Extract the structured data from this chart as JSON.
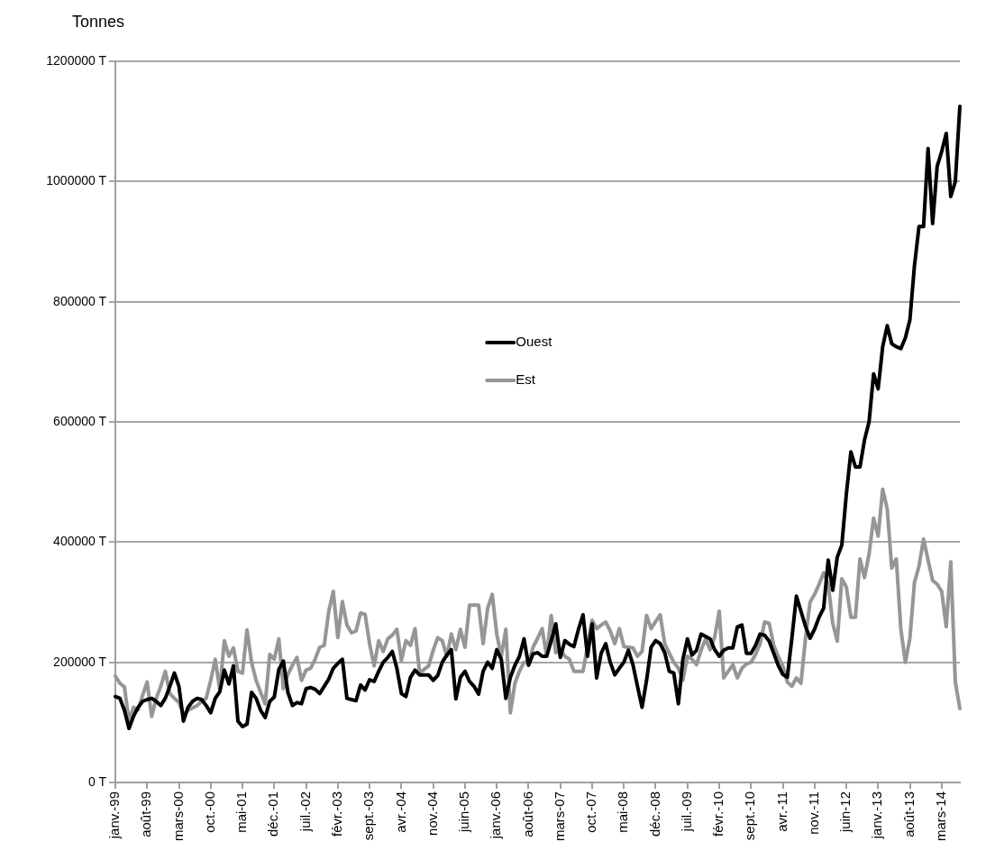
{
  "chart_data": {
    "type": "line",
    "ylabel": "Tonnes",
    "categories": [
      "janv.-99",
      null,
      null,
      null,
      null,
      null,
      null,
      "août-99",
      null,
      null,
      null,
      null,
      null,
      null,
      "mars-00",
      null,
      null,
      null,
      null,
      null,
      null,
      "oct.-00",
      null,
      null,
      null,
      null,
      null,
      null,
      "mai-01",
      null,
      null,
      null,
      null,
      null,
      null,
      "déc.-01",
      null,
      null,
      null,
      null,
      null,
      null,
      "juil.-02",
      null,
      null,
      null,
      null,
      null,
      null,
      "févr.-03",
      null,
      null,
      null,
      null,
      null,
      null,
      "sept.-03",
      null,
      null,
      null,
      null,
      null,
      null,
      "avr.-04",
      null,
      null,
      null,
      null,
      null,
      null,
      "nov.-04",
      null,
      null,
      null,
      null,
      null,
      null,
      "juin-05",
      null,
      null,
      null,
      null,
      null,
      null,
      "janv.-06",
      null,
      null,
      null,
      null,
      null,
      null,
      "août-06",
      null,
      null,
      null,
      null,
      null,
      null,
      "mars-07",
      null,
      null,
      null,
      null,
      null,
      null,
      "oct.-07",
      null,
      null,
      null,
      null,
      null,
      null,
      "mai-08",
      null,
      null,
      null,
      null,
      null,
      null,
      "déc.-08",
      null,
      null,
      null,
      null,
      null,
      null,
      "juil.-09",
      null,
      null,
      null,
      null,
      null,
      null,
      "févr.-10",
      null,
      null,
      null,
      null,
      null,
      null,
      "sept.-10",
      null,
      null,
      null,
      null,
      null,
      null,
      "avr.-11",
      null,
      null,
      null,
      null,
      null,
      null,
      "nov.-11",
      null,
      null,
      null,
      null,
      null,
      null,
      "juin-12",
      null,
      null,
      null,
      null,
      null,
      null,
      "janv.-13",
      null,
      null,
      null,
      null,
      null,
      null,
      "août-13",
      null,
      null,
      null,
      null,
      null,
      null,
      "mars-14",
      null,
      null,
      null,
      null
    ],
    "series": [
      {
        "name": "Ouest",
        "color": "#000000",
        "values": [
          143000,
          140000,
          120000,
          90000,
          110000,
          125000,
          135000,
          138000,
          140000,
          135000,
          128000,
          140000,
          160000,
          182000,
          160000,
          102000,
          125000,
          135000,
          140000,
          138000,
          128000,
          116000,
          140000,
          151000,
          187000,
          164000,
          194000,
          102000,
          93000,
          97000,
          150000,
          140000,
          120000,
          108000,
          135000,
          142000,
          188000,
          202000,
          150000,
          128000,
          133000,
          131000,
          156000,
          158000,
          155000,
          148000,
          160000,
          172000,
          190000,
          198000,
          205000,
          140000,
          138000,
          136000,
          162000,
          154000,
          171000,
          168000,
          185000,
          200000,
          208000,
          218000,
          190000,
          148000,
          143000,
          175000,
          187000,
          179000,
          179000,
          179000,
          170000,
          178000,
          200000,
          212000,
          221000,
          139000,
          175000,
          185000,
          168000,
          160000,
          147000,
          185000,
          200000,
          190000,
          221000,
          205000,
          140000,
          175000,
          195000,
          210000,
          239000,
          195000,
          214000,
          216000,
          210000,
          210000,
          236000,
          264000,
          208000,
          236000,
          230000,
          226000,
          255000,
          279000,
          210000,
          264000,
          174000,
          215000,
          231000,
          200000,
          179000,
          190000,
          200000,
          220000,
          196000,
          160000,
          125000,
          170000,
          225000,
          236000,
          231000,
          216000,
          185000,
          182000,
          131000,
          205000,
          239000,
          212000,
          220000,
          247000,
          243000,
          239000,
          221000,
          210000,
          220000,
          224000,
          224000,
          259000,
          262000,
          215000,
          215000,
          228000,
          247000,
          245000,
          235000,
          215000,
          195000,
          180000,
          175000,
          240000,
          310000,
          285000,
          260000,
          240000,
          255000,
          275000,
          290000,
          370000,
          320000,
          375000,
          395000,
          480000,
          550000,
          525000,
          525000,
          570000,
          600000,
          680000,
          655000,
          725000,
          760000,
          730000,
          725000,
          722000,
          740000,
          770000,
          860000,
          925000,
          925000,
          1055000,
          930000,
          1025000,
          1050000,
          1080000,
          975000,
          1000000,
          1125000
        ]
      },
      {
        "name": "Est",
        "color": "#969696",
        "values": [
          177000,
          165000,
          159000,
          102000,
          125000,
          121000,
          145000,
          167000,
          110000,
          140000,
          160000,
          185000,
          148000,
          140000,
          133000,
          113000,
          120000,
          124000,
          128000,
          135000,
          140000,
          170000,
          205000,
          154000,
          236000,
          210000,
          224000,
          185000,
          182000,
          254000,
          200000,
          170000,
          150000,
          131000,
          213000,
          205000,
          239000,
          156000,
          180000,
          195000,
          208000,
          170000,
          187000,
          190000,
          205000,
          225000,
          228000,
          285000,
          318000,
          241000,
          301000,
          262000,
          249000,
          252000,
          282000,
          280000,
          230000,
          194000,
          236000,
          218000,
          239000,
          245000,
          255000,
          203000,
          236000,
          228000,
          256000,
          182000,
          188000,
          194000,
          220000,
          241000,
          236000,
          210000,
          247000,
          221000,
          255000,
          225000,
          295000,
          295000,
          295000,
          231000,
          290000,
          313000,
          247000,
          210000,
          255000,
          116000,
          165000,
          185000,
          200000,
          200000,
          225000,
          240000,
          256000,
          210000,
          278000,
          216000,
          221000,
          210000,
          205000,
          185000,
          185000,
          185000,
          226000,
          270000,
          256000,
          262000,
          267000,
          252000,
          231000,
          256000,
          226000,
          225000,
          224000,
          210000,
          218000,
          278000,
          256000,
          268000,
          279000,
          231000,
          215000,
          200000,
          190000,
          170000,
          210000,
          205000,
          196000,
          220000,
          239000,
          221000,
          242000,
          285000,
          174000,
          185000,
          196000,
          174000,
          190000,
          197000,
          200000,
          213000,
          231000,
          267000,
          265000,
          228000,
          210000,
          194000,
          167000,
          160000,
          174000,
          165000,
          240000,
          300000,
          313000,
          330000,
          349000,
          330000,
          265000,
          235000,
          339000,
          325000,
          275000,
          275000,
          372000,
          341000,
          380000,
          440000,
          410000,
          488000,
          455000,
          357000,
          372000,
          255000,
          200000,
          240000,
          333000,
          360000,
          405000,
          370000,
          336000,
          330000,
          318000,
          259000,
          367000,
          167000,
          123000
        ]
      }
    ],
    "ylim": [
      0,
      1200000
    ],
    "yticks": [
      {
        "value": 0,
        "label": "0 T"
      },
      {
        "value": 200000,
        "label": "200000 T"
      },
      {
        "value": 400000,
        "label": "400000 T"
      },
      {
        "value": 600000,
        "label": "600000 T"
      },
      {
        "value": 800000,
        "label": "800000 T"
      },
      {
        "value": 1000000,
        "label": "1000000 T"
      },
      {
        "value": 1200000,
        "label": "1200000 T"
      }
    ],
    "grid": "y",
    "legend": "center",
    "marker": "none",
    "line_style": "solid"
  }
}
